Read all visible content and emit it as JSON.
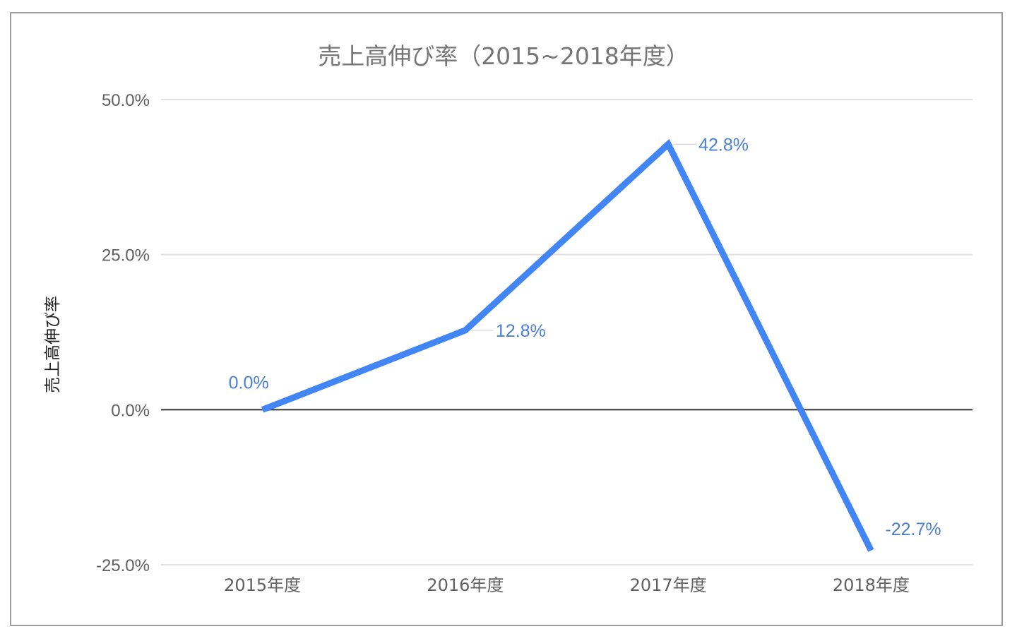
{
  "chart_data": {
    "type": "line",
    "title": "売上高伸び率（2015~2018年度）",
    "xlabel": "",
    "ylabel": "売上高伸び率",
    "categories": [
      "2015年度",
      "2016年度",
      "2017年度",
      "2018年度"
    ],
    "series": [
      {
        "values": [
          0.0,
          12.8,
          42.8,
          -22.7
        ],
        "data_labels": [
          "0.0%",
          "12.8%",
          "42.8%",
          "-22.7%"
        ],
        "color": "#4285f4"
      }
    ],
    "ylim": [
      -25,
      50
    ],
    "yticks": [
      50,
      25,
      0,
      -25
    ],
    "ytick_labels": [
      "50.0%",
      "25.0%",
      "0.0%",
      "-25.0%"
    ],
    "grid": true,
    "legend": "none"
  }
}
